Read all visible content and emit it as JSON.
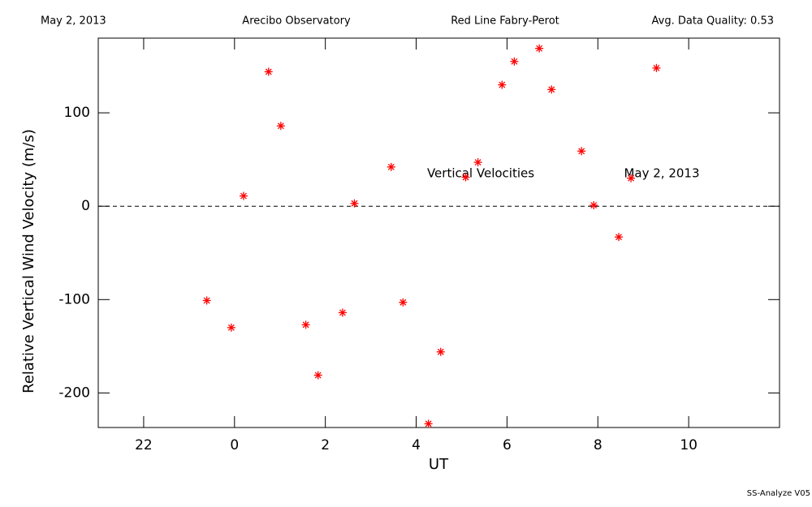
{
  "chart_data": {
    "type": "scatter",
    "header": [
      "May 2, 2013",
      "Arecibo Observatory",
      "Red Line Fabry-Perot",
      "Avg. Data Quality: 0.53"
    ],
    "x_label": "UT",
    "y_label": "Relative Vertical Wind Velocity (m/s)",
    "annotations": [
      "Vertical Velocities",
      "May 2, 2013"
    ],
    "footer": "SS-Analyze V05",
    "xlim": [
      -3,
      12
    ],
    "xticks": [
      {
        "value": -2,
        "label": "22"
      },
      0,
      2,
      4,
      6,
      8,
      10
    ],
    "ylim": [
      -237,
      180
    ],
    "yticks": [
      -200,
      -100,
      0,
      100
    ],
    "reference_line": 0,
    "series": [
      {
        "color": "#ff0000",
        "x": [
          -0.61,
          -0.07,
          0.2,
          0.75,
          1.02,
          1.57,
          1.84,
          2.38,
          2.64,
          3.45,
          3.71,
          4.27,
          4.54,
          5.09,
          5.36,
          5.89,
          6.16,
          6.71,
          6.98,
          7.64,
          7.91,
          8.46,
          8.73,
          9.29
        ],
        "values": [
          -101,
          -130,
          11,
          144,
          86,
          -127,
          -181,
          -114,
          3,
          42,
          -103,
          -233,
          -156,
          31,
          47,
          130,
          155,
          169,
          125,
          59,
          1,
          -33,
          30,
          148
        ]
      }
    ]
  }
}
